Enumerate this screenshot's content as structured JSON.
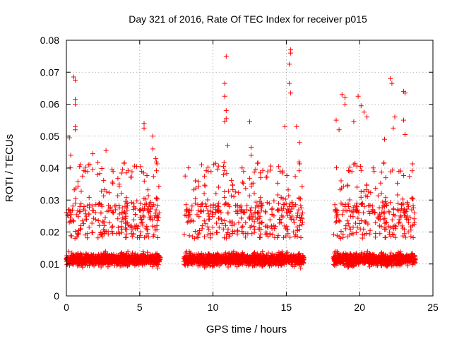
{
  "chart_data": {
    "type": "scatter",
    "title": "Day 321 of 2016, Rate Of TEC Index for receiver p015",
    "xlabel": "GPS time / hours",
    "ylabel": "ROTI / TECUs",
    "xlim": [
      0,
      25
    ],
    "ylim": [
      0,
      0.08
    ],
    "xticks": [
      "0",
      "5",
      "10",
      "15",
      "20",
      "25"
    ],
    "yticks": [
      "0",
      "0.01",
      "0.02",
      "0.03",
      "0.04",
      "0.05",
      "0.06",
      "0.07",
      "0.08"
    ],
    "grid": true,
    "marker": "+",
    "color": "#ff0000",
    "data_windows_hours": [
      [
        0,
        6.4
      ],
      [
        8.0,
        16.2
      ],
      [
        18.2,
        23.8
      ]
    ],
    "series": [
      {
        "points": [
          [
            0.2,
            0.0495
          ],
          [
            0.3,
            0.044
          ],
          [
            0.5,
            0.0685
          ],
          [
            0.6,
            0.0675
          ],
          [
            0.6,
            0.0615
          ],
          [
            0.6,
            0.06
          ],
          [
            0.6,
            0.053
          ],
          [
            0.6,
            0.052
          ],
          [
            0.9,
            0.0405
          ],
          [
            1.8,
            0.0445
          ],
          [
            2.7,
            0.0455
          ],
          [
            4.8,
            0.0405
          ],
          [
            5.3,
            0.054
          ],
          [
            5.3,
            0.0525
          ],
          [
            5.9,
            0.05
          ],
          [
            5.9,
            0.046
          ],
          [
            6.1,
            0.043
          ],
          [
            8.1,
            0.0375
          ],
          [
            9.4,
            0.032
          ],
          [
            10.2,
            0.032
          ],
          [
            10.9,
            0.075
          ],
          [
            10.8,
            0.0665
          ],
          [
            10.8,
            0.0625
          ],
          [
            10.9,
            0.058
          ],
          [
            10.9,
            0.0555
          ],
          [
            10.8,
            0.0545
          ],
          [
            11.0,
            0.047
          ],
          [
            12.5,
            0.0545
          ],
          [
            12.6,
            0.0465
          ],
          [
            12.6,
            0.044
          ],
          [
            14.9,
            0.053
          ],
          [
            15.3,
            0.077
          ],
          [
            15.3,
            0.076
          ],
          [
            15.2,
            0.0725
          ],
          [
            15.2,
            0.0665
          ],
          [
            15.3,
            0.0635
          ],
          [
            15.7,
            0.053
          ],
          [
            15.9,
            0.048
          ],
          [
            18.4,
            0.055
          ],
          [
            18.6,
            0.052
          ],
          [
            18.8,
            0.063
          ],
          [
            19.0,
            0.062
          ],
          [
            19.0,
            0.06
          ],
          [
            19.6,
            0.0545
          ],
          [
            19.9,
            0.0625
          ],
          [
            20.1,
            0.0595
          ],
          [
            20.3,
            0.0575
          ],
          [
            20.5,
            0.056
          ],
          [
            21.7,
            0.049
          ],
          [
            22.1,
            0.068
          ],
          [
            22.2,
            0.0665
          ],
          [
            22.4,
            0.056
          ],
          [
            22.3,
            0.0525
          ],
          [
            23.0,
            0.064
          ],
          [
            23.1,
            0.0635
          ],
          [
            23.0,
            0.055
          ],
          [
            23.1,
            0.0505
          ]
        ]
      }
    ]
  }
}
